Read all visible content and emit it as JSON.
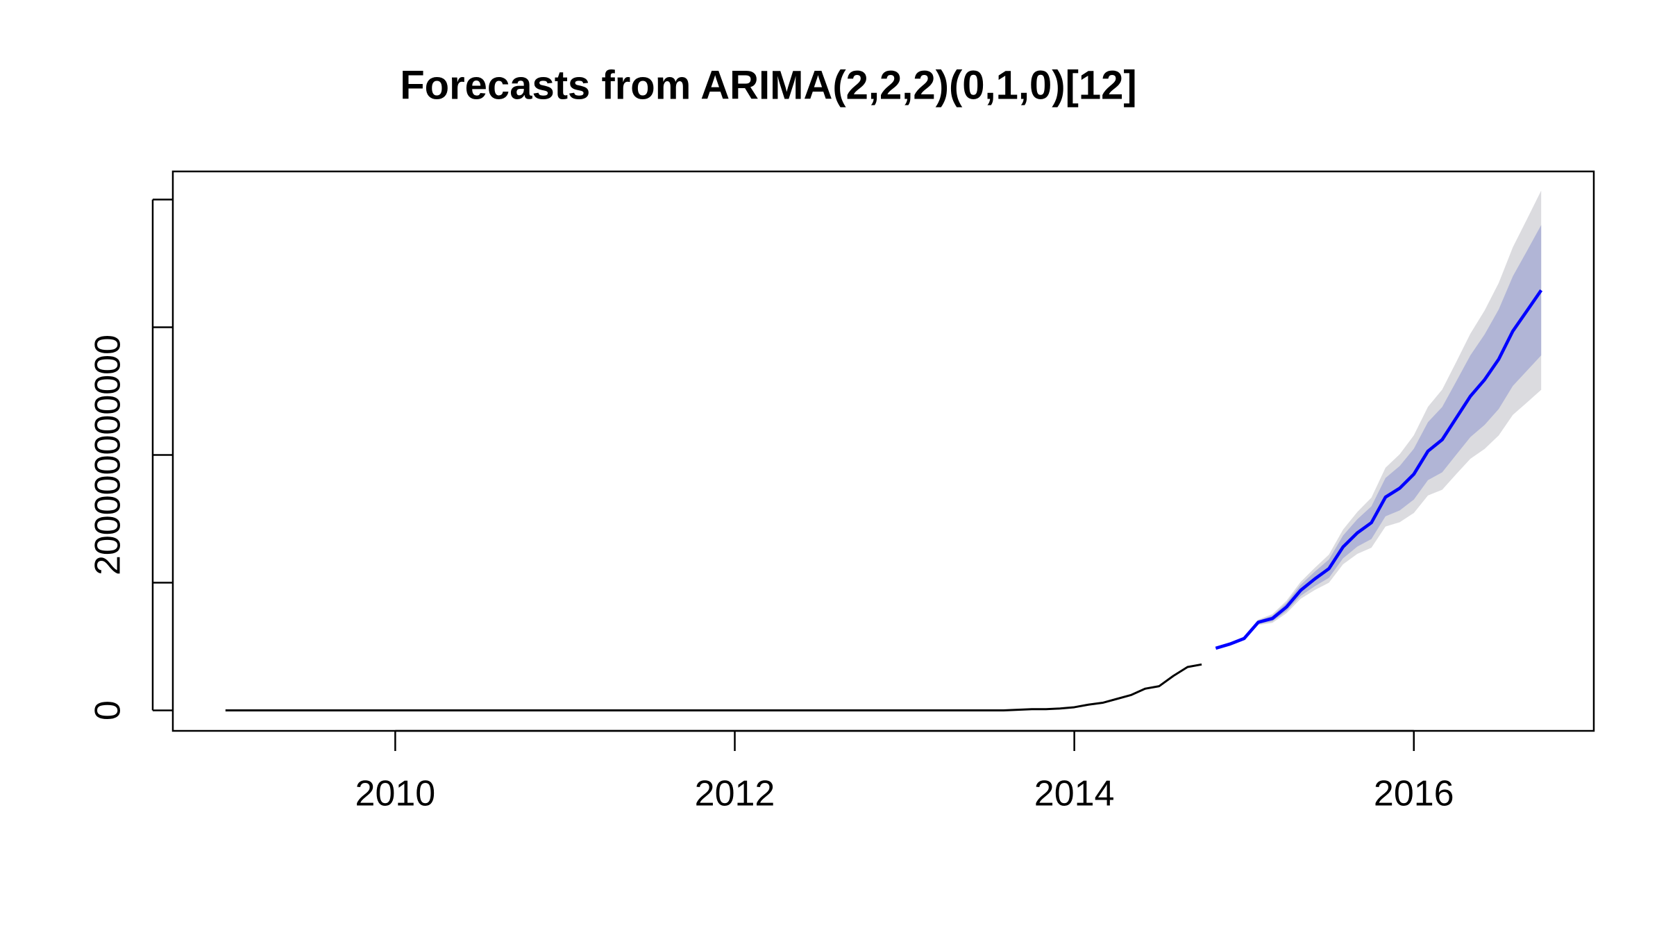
{
  "chart_data": {
    "type": "forecast",
    "title": "Forecasts from ARIMA(2,2,2)(0,1,0)[12]",
    "xlim": [
      2008.69,
      2017.06
    ],
    "xticks": [
      2010,
      2012,
      2014,
      2016
    ],
    "ylim": [
      -16000000000.0,
      422000000000.0
    ],
    "yticks": [
      0,
      100000000000,
      200000000000,
      300000000000,
      400000000000
    ],
    "series": [
      {
        "color": "#000000",
        "x": [
          2009,
          2009.083,
          2009.167,
          2009.25,
          2009.333,
          2009.417,
          2009.5,
          2009.583,
          2009.667,
          2009.75,
          2009.833,
          2009.917,
          2010,
          2010.083,
          2010.167,
          2010.25,
          2010.333,
          2010.417,
          2010.5,
          2010.583,
          2010.667,
          2010.75,
          2010.833,
          2010.917,
          2011,
          2011.083,
          2011.167,
          2011.25,
          2011.333,
          2011.417,
          2011.5,
          2011.583,
          2011.667,
          2011.75,
          2011.833,
          2011.917,
          2012,
          2012.083,
          2012.167,
          2012.25,
          2012.333,
          2012.417,
          2012.5,
          2012.583,
          2012.667,
          2012.75,
          2012.833,
          2012.917,
          2013,
          2013.083,
          2013.167,
          2013.25,
          2013.333,
          2013.417,
          2013.5,
          2013.583,
          2013.667,
          2013.75,
          2013.833,
          2013.917,
          2014,
          2014.083,
          2014.167,
          2014.25,
          2014.333,
          2014.417,
          2014.5,
          2014.583,
          2014.667,
          2014.75
        ],
        "values": [
          0,
          0,
          0,
          0,
          0,
          0,
          0,
          0,
          0,
          0,
          0,
          0,
          0,
          0,
          0,
          0,
          0,
          0,
          0,
          0,
          0,
          0,
          0,
          0,
          0,
          0,
          0,
          0,
          0,
          0,
          0,
          0,
          0,
          0,
          0,
          0,
          0,
          0,
          0,
          0,
          0,
          0,
          0,
          0,
          0,
          0,
          0,
          0,
          0,
          0,
          0,
          0,
          0,
          0,
          0,
          0,
          500000000.0,
          1000000000.0,
          1000000000.0,
          1500000000.0,
          2500000000.0,
          4500000000.0,
          6000000000.0,
          9000000000.0,
          12000000000.0,
          17000000000.0,
          19000000000.0,
          27000000000.0,
          34000000000.0,
          36000000000.0
        ]
      },
      {
        "color": "#0000ff",
        "x": [
          2014.833,
          2014.917,
          2015,
          2015.083,
          2015.167,
          2015.25,
          2015.333,
          2015.417,
          2015.5,
          2015.583,
          2015.667,
          2015.75,
          2015.833,
          2015.917,
          2016,
          2016.083,
          2016.167,
          2016.25,
          2016.333,
          2016.417,
          2016.5,
          2016.583,
          2016.667,
          2016.75
        ],
        "values": [
          48700000000.0,
          52000000000.0,
          56300000000.0,
          69000000000.0,
          72000000000.0,
          81000000000.0,
          94000000000.0,
          103000000000.0,
          111000000000.0,
          128000000000.0,
          139000000000.0,
          147000000000.0,
          167000000000.0,
          174000000000.0,
          185000000000.0,
          203000000000.0,
          212000000000.0,
          229000000000.0,
          246000000000.0,
          259000000000.0,
          275000000000.0,
          297000000000.0,
          313000000000.0,
          329000000000.0
        ]
      }
    ],
    "bands": [
      {
        "color": "#dbdbdf",
        "lower": [
          48600000000.0,
          51500000000.0,
          55100000000.0,
          66900000000.0,
          68600000000.0,
          76100000000.0,
          87400000000.0,
          94300000000.0,
          100000000000.0,
          114400000000.0,
          122600000000.0,
          127400000000.0,
          144000000000.0,
          147400000000.0,
          154600000000.0,
          168300000000.0,
          172800000000.0,
          185100000000.0,
          197000000000.0,
          204800000000.0,
          215300000000.0,
          231400000000.0,
          241200000000.0,
          251000000000.0
        ],
        "upper": [
          48800000000.0,
          52500000000.0,
          57500000000.0,
          71100000000.0,
          75400000000.0,
          85900000000.0,
          100600000000.0,
          111700000000.0,
          122000000000.0,
          141600000000.0,
          155400000000.0,
          166600000000.0,
          190000000000.0,
          200600000000.0,
          215400000000.0,
          237700000000.0,
          251200000000.0,
          272900000000.0,
          295000000000.0,
          313200000000.0,
          334700000000.0,
          362600000000.0,
          384800000000.0,
          407000000000.0
        ]
      },
      {
        "color": "#b1b5d6",
        "lower": [
          48600000000.0,
          51600000000.0,
          55500000000.0,
          67600000000.0,
          69800000000.0,
          77800000000.0,
          89700000000.0,
          97300000000.0,
          103800000000.0,
          119100000000.0,
          128300000000.0,
          134200000000.0,
          152000000000.0,
          156600000000.0,
          165100000000.0,
          180300000000.0,
          186400000000.0,
          200300000000.0,
          214000000000.0,
          223600000000.0,
          236000000000.0,
          254100000000.0,
          266100000000.0,
          278000000000.0
        ],
        "upper": [
          48800000000.0,
          52400000000.0,
          57100000000.0,
          70400000000.0,
          74200000000.0,
          84200000000.0,
          98300000000.0,
          108700000000.0,
          118200000000.0,
          136900000000.0,
          149700000000.0,
          159800000000.0,
          182000000000.0,
          191400000000.0,
          204900000000.0,
          225700000000.0,
          237600000000.0,
          257700000000.0,
          278000000000.0,
          294400000000.0,
          314000000000.0,
          339900000000.0,
          359900000000.0,
          380000000000.0
        ]
      }
    ]
  }
}
